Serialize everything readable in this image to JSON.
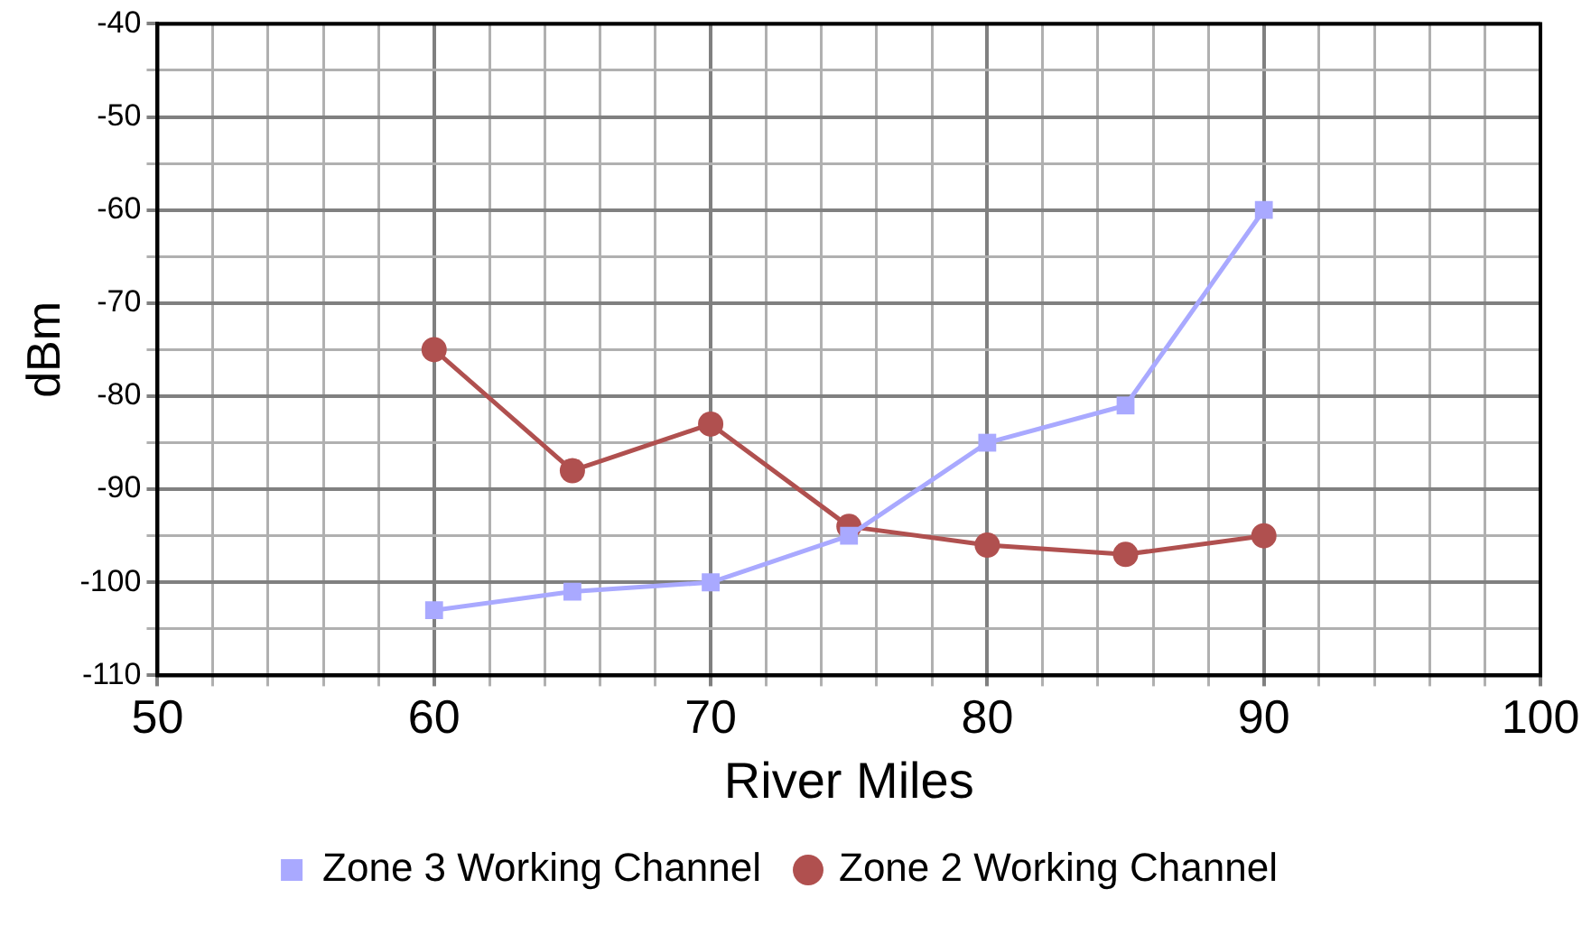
{
  "chart_data": {
    "type": "line",
    "xlabel": "River Miles",
    "ylabel": "dBm",
    "x": [
      60,
      65,
      70,
      75,
      80,
      85,
      90
    ],
    "series": [
      {
        "name": "Zone 3 Working Channel",
        "color": "#a9a9ff",
        "marker": "square",
        "values": [
          -103,
          -101,
          -100,
          -95,
          -85,
          -81,
          -60
        ]
      },
      {
        "name": "Zone 2 Working Channel",
        "color": "#b0504f",
        "marker": "circle",
        "values": [
          -75,
          -88,
          -83,
          -94,
          -96,
          -97,
          -95
        ]
      }
    ],
    "xlim": [
      50,
      100
    ],
    "xticks": [
      50,
      {
        "value": 52,
        "label": null
      },
      {
        "value": 54,
        "label": null
      },
      {
        "value": 56,
        "label": null
      },
      {
        "value": 58,
        "label": null
      },
      60,
      {
        "value": 62,
        "label": null
      },
      {
        "value": 64,
        "label": null
      },
      {
        "value": 66,
        "label": null
      },
      {
        "value": 68,
        "label": null
      },
      70,
      {
        "value": 72,
        "label": null
      },
      {
        "value": 74,
        "label": null
      },
      {
        "value": 76,
        "label": null
      },
      {
        "value": 78,
        "label": null
      },
      80,
      {
        "value": 82,
        "label": null
      },
      {
        "value": 84,
        "label": null
      },
      {
        "value": 86,
        "label": null
      },
      {
        "value": 88,
        "label": null
      },
      90,
      {
        "value": 92,
        "label": null
      },
      {
        "value": 94,
        "label": null
      },
      {
        "value": 96,
        "label": null
      },
      {
        "value": 98,
        "label": null
      },
      100
    ],
    "ylim": [
      -110,
      -40
    ],
    "yticks": [
      -110,
      {
        "value": -105,
        "label": null
      },
      -100,
      {
        "value": -95,
        "label": null
      },
      -90,
      {
        "value": -85,
        "label": null
      },
      -80,
      {
        "value": -75,
        "label": null
      },
      -70,
      {
        "value": -65,
        "label": null
      },
      -60,
      {
        "value": -55,
        "label": null
      },
      -50,
      {
        "value": -45,
        "label": null
      },
      -40
    ],
    "grid": true,
    "legend": "bottom",
    "line_style": "solid"
  }
}
